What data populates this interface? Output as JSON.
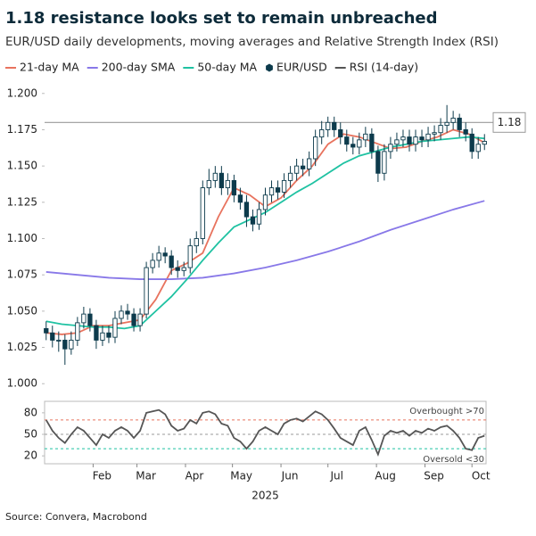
{
  "chart_data": [
    {
      "type": "candlestick",
      "title": "1.18 resistance looks set to remain unbreached",
      "subtitle": "EUR/USD daily developments, moving averages and Relative Strength Index (RSI)",
      "xlim": [
        1,
        283
      ],
      "ylim": [
        0.994,
        1.206
      ],
      "yticks": [
        {
          "value": 1,
          "label": "1.000"
        },
        {
          "value": 1.025,
          "label": "1.025"
        },
        {
          "value": 1.05,
          "label": "1.050"
        },
        {
          "value": 1.075,
          "label": "1.075"
        },
        {
          "value": 1.1,
          "label": "1.100"
        },
        {
          "value": 1.125,
          "label": "1.125"
        },
        {
          "value": 1.15,
          "label": "1.150"
        },
        {
          "value": 1.175,
          "label": "1.175"
        },
        {
          "value": 1.2,
          "label": "1.200"
        }
      ],
      "series": [
        {
          "name": "21-day MA",
          "type": "line",
          "color": "#e8735e",
          "x": [
            2,
            12,
            22,
            32,
            42,
            52,
            62,
            72,
            82,
            92,
            102,
            112,
            122,
            132,
            142,
            152,
            162,
            172,
            182,
            192,
            202,
            212,
            222,
            232,
            242,
            252,
            262,
            272,
            282
          ],
          "values": [
            1.035,
            1.034,
            1.035,
            1.04,
            1.04,
            1.042,
            1.044,
            1.058,
            1.078,
            1.083,
            1.09,
            1.115,
            1.135,
            1.13,
            1.122,
            1.128,
            1.14,
            1.15,
            1.165,
            1.172,
            1.17,
            1.166,
            1.162,
            1.163,
            1.167,
            1.17,
            1.175,
            1.172,
            1.166
          ]
        },
        {
          "name": "200-day SMA",
          "type": "line",
          "color": "#8878e8",
          "x": [
            2,
            22,
            42,
            62,
            82,
            102,
            122,
            142,
            162,
            182,
            202,
            222,
            242,
            262,
            282
          ],
          "values": [
            1.077,
            1.075,
            1.073,
            1.072,
            1.072,
            1.073,
            1.076,
            1.08,
            1.085,
            1.091,
            1.098,
            1.106,
            1.113,
            1.12,
            1.126
          ]
        },
        {
          "name": "50-day MA",
          "type": "line",
          "color": "#1fc2a2",
          "x": [
            2,
            12,
            22,
            32,
            42,
            52,
            62,
            72,
            82,
            92,
            102,
            112,
            122,
            132,
            142,
            152,
            162,
            172,
            182,
            192,
            202,
            212,
            222,
            232,
            242,
            252,
            262,
            272,
            282
          ],
          "values": [
            1.043,
            1.041,
            1.04,
            1.039,
            1.039,
            1.038,
            1.04,
            1.05,
            1.06,
            1.072,
            1.085,
            1.097,
            1.108,
            1.113,
            1.118,
            1.125,
            1.132,
            1.138,
            1.145,
            1.152,
            1.157,
            1.16,
            1.163,
            1.165,
            1.167,
            1.168,
            1.169,
            1.17,
            1.169
          ]
        },
        {
          "name": "EUR/USD",
          "type": "candlestick",
          "color": "#0d3b4c",
          "x": [
            2,
            6,
            10,
            14,
            18,
            22,
            26,
            30,
            34,
            38,
            42,
            46,
            50,
            54,
            58,
            62,
            66,
            70,
            74,
            78,
            82,
            86,
            90,
            94,
            98,
            102,
            106,
            110,
            114,
            118,
            122,
            126,
            130,
            134,
            138,
            142,
            146,
            150,
            154,
            158,
            162,
            166,
            170,
            174,
            178,
            182,
            186,
            190,
            194,
            198,
            202,
            206,
            210,
            214,
            218,
            222,
            226,
            230,
            234,
            238,
            242,
            246,
            250,
            254,
            258,
            262,
            266,
            270,
            274,
            278,
            282
          ],
          "open": [
            1.038,
            1.035,
            1.03,
            1.03,
            1.024,
            1.03,
            1.042,
            1.048,
            1.04,
            1.03,
            1.035,
            1.032,
            1.045,
            1.05,
            1.048,
            1.04,
            1.048,
            1.08,
            1.085,
            1.09,
            1.088,
            1.08,
            1.078,
            1.08,
            1.095,
            1.1,
            1.135,
            1.14,
            1.145,
            1.135,
            1.14,
            1.13,
            1.125,
            1.115,
            1.11,
            1.12,
            1.13,
            1.135,
            1.132,
            1.14,
            1.145,
            1.15,
            1.148,
            1.155,
            1.17,
            1.175,
            1.18,
            1.175,
            1.17,
            1.165,
            1.163,
            1.168,
            1.172,
            1.16,
            1.145,
            1.16,
            1.165,
            1.168,
            1.17,
            1.165,
            1.17,
            1.168,
            1.172,
            1.173,
            1.178,
            1.18,
            1.183,
            1.175,
            1.172,
            1.16,
            1.165
          ],
          "high": [
            1.043,
            1.04,
            1.036,
            1.034,
            1.036,
            1.046,
            1.053,
            1.052,
            1.044,
            1.04,
            1.04,
            1.05,
            1.054,
            1.055,
            1.052,
            1.052,
            1.084,
            1.09,
            1.095,
            1.094,
            1.092,
            1.085,
            1.084,
            1.1,
            1.105,
            1.14,
            1.148,
            1.15,
            1.15,
            1.145,
            1.144,
            1.135,
            1.13,
            1.12,
            1.125,
            1.135,
            1.14,
            1.14,
            1.145,
            1.15,
            1.155,
            1.155,
            1.16,
            1.175,
            1.181,
            1.184,
            1.184,
            1.18,
            1.175,
            1.17,
            1.173,
            1.177,
            1.176,
            1.164,
            1.165,
            1.17,
            1.173,
            1.175,
            1.175,
            1.175,
            1.175,
            1.177,
            1.178,
            1.183,
            1.192,
            1.188,
            1.186,
            1.18,
            1.176,
            1.17,
            1.172
          ],
          "low": [
            1.03,
            1.025,
            1.022,
            1.013,
            1.02,
            1.026,
            1.038,
            1.036,
            1.024,
            1.026,
            1.028,
            1.028,
            1.041,
            1.044,
            1.036,
            1.036,
            1.045,
            1.076,
            1.08,
            1.083,
            1.075,
            1.073,
            1.074,
            1.076,
            1.09,
            1.096,
            1.13,
            1.135,
            1.13,
            1.13,
            1.125,
            1.12,
            1.108,
            1.105,
            1.106,
            1.116,
            1.125,
            1.127,
            1.128,
            1.135,
            1.14,
            1.143,
            1.143,
            1.15,
            1.165,
            1.17,
            1.17,
            1.165,
            1.16,
            1.158,
            1.158,
            1.163,
            1.155,
            1.139,
            1.14,
            1.155,
            1.16,
            1.163,
            1.16,
            1.16,
            1.163,
            1.163,
            1.167,
            1.168,
            1.173,
            1.175,
            1.17,
            1.167,
            1.155,
            1.155,
            1.161
          ],
          "close": [
            1.035,
            1.03,
            1.03,
            1.024,
            1.03,
            1.042,
            1.048,
            1.04,
            1.03,
            1.035,
            1.032,
            1.045,
            1.05,
            1.048,
            1.04,
            1.048,
            1.08,
            1.085,
            1.09,
            1.088,
            1.08,
            1.078,
            1.08,
            1.095,
            1.1,
            1.135,
            1.14,
            1.145,
            1.135,
            1.14,
            1.13,
            1.125,
            1.115,
            1.11,
            1.12,
            1.13,
            1.135,
            1.132,
            1.14,
            1.145,
            1.15,
            1.148,
            1.155,
            1.17,
            1.175,
            1.18,
            1.175,
            1.17,
            1.165,
            1.163,
            1.168,
            1.172,
            1.16,
            1.145,
            1.16,
            1.165,
            1.168,
            1.17,
            1.165,
            1.17,
            1.168,
            1.172,
            1.173,
            1.178,
            1.18,
            1.183,
            1.175,
            1.172,
            1.16,
            1.165,
            1.167
          ]
        }
      ],
      "annotations": [
        {
          "value": 1.18,
          "label": "1.18",
          "color": "#999999"
        }
      ]
    },
    {
      "type": "line",
      "xlim": [
        1,
        283
      ],
      "ylim": [
        9,
        96
      ],
      "yticks": [
        20,
        50,
        80
      ],
      "xticks": [
        {
          "value": 32,
          "label": "Feb"
        },
        {
          "value": 60,
          "label": "Mar"
        },
        {
          "value": 91,
          "label": "Apr"
        },
        {
          "value": 121,
          "label": "May"
        },
        {
          "value": 152,
          "label": "Jun"
        },
        {
          "value": 182,
          "label": "Jul"
        },
        {
          "value": 213,
          "label": "Aug"
        },
        {
          "value": 244,
          "label": "Sep"
        },
        {
          "value": 274,
          "label": "Oct"
        }
      ],
      "xlabel": "2025",
      "series": [
        {
          "name": "RSI (14-day)",
          "type": "line",
          "color": "#555555",
          "x": [
            2,
            6,
            10,
            14,
            18,
            22,
            26,
            30,
            34,
            38,
            42,
            46,
            50,
            54,
            58,
            62,
            66,
            70,
            74,
            78,
            82,
            86,
            90,
            94,
            98,
            102,
            106,
            110,
            114,
            118,
            122,
            126,
            130,
            134,
            138,
            142,
            146,
            150,
            154,
            158,
            162,
            166,
            170,
            174,
            178,
            182,
            186,
            190,
            194,
            198,
            202,
            206,
            210,
            214,
            218,
            222,
            226,
            230,
            234,
            238,
            242,
            246,
            250,
            254,
            258,
            262,
            266,
            270,
            274,
            278,
            282
          ],
          "values": [
            70,
            55,
            45,
            38,
            50,
            60,
            55,
            45,
            35,
            50,
            45,
            55,
            60,
            55,
            45,
            55,
            80,
            82,
            84,
            78,
            62,
            55,
            58,
            70,
            65,
            80,
            82,
            78,
            65,
            62,
            45,
            40,
            30,
            40,
            55,
            60,
            55,
            50,
            65,
            70,
            72,
            68,
            75,
            82,
            78,
            70,
            58,
            45,
            40,
            35,
            55,
            60,
            42,
            22,
            48,
            55,
            52,
            55,
            48,
            55,
            52,
            58,
            55,
            60,
            62,
            55,
            45,
            30,
            28,
            45,
            48
          ]
        }
      ],
      "reference_lines": [
        {
          "value": 70,
          "label": "Overbought >70",
          "color": "#e8735e"
        },
        {
          "value": 50,
          "color": "#9a9a9a"
        },
        {
          "value": 30,
          "label": "Oversold <30",
          "color": "#1fc2a2"
        }
      ]
    }
  ],
  "source": "Source: Convera, Macrobond"
}
